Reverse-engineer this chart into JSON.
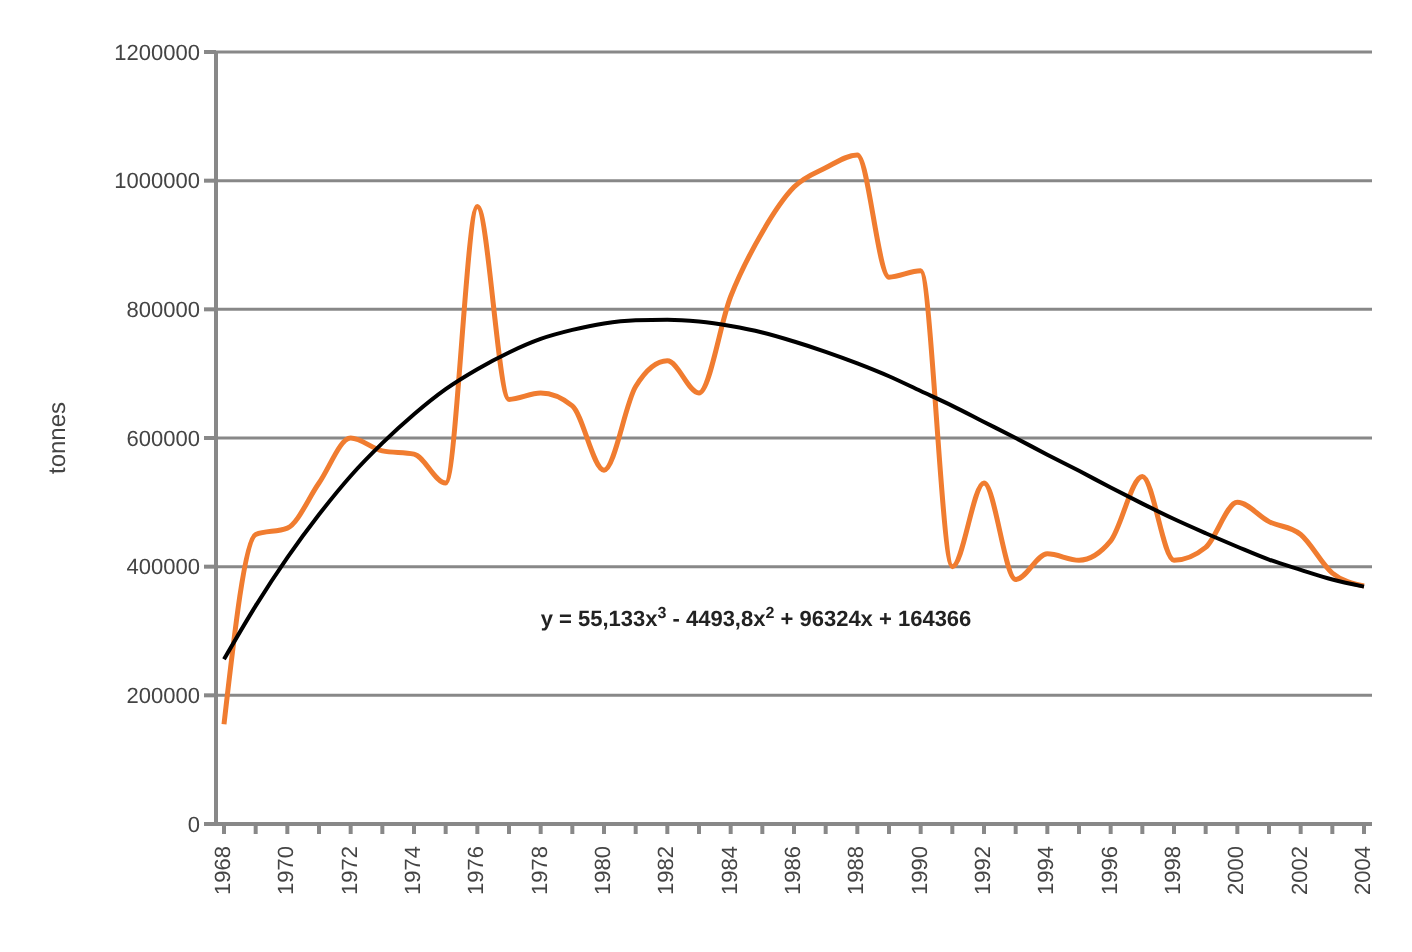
{
  "chart_data": {
    "type": "line",
    "ylabel": "tonnes",
    "categories": [
      "1968",
      null,
      "1970",
      null,
      "1972",
      null,
      "1974",
      null,
      "1976",
      null,
      "1978",
      null,
      "1980",
      null,
      "1982",
      null,
      "1984",
      null,
      "1986",
      null,
      "1988",
      null,
      "1990",
      null,
      "1992",
      null,
      "1994",
      null,
      "1996",
      null,
      "1998",
      null,
      "2000",
      null,
      "2002",
      null,
      "2004"
    ],
    "series": [
      {
        "color": "#f07c30",
        "values": [
          155000,
          450000,
          460000,
          530000,
          600000,
          580000,
          575000,
          530000,
          960000,
          660000,
          670000,
          650000,
          550000,
          680000,
          720000,
          670000,
          820000,
          920000,
          990000,
          1020000,
          1040000,
          850000,
          860000,
          400000,
          530000,
          380000,
          420000,
          410000,
          440000,
          540000,
          410000,
          430000,
          500000,
          470000,
          450000,
          390000,
          370000
        ]
      },
      {
        "type": "line",
        "color": "#000000",
        "values": [
          256000,
          339000,
          414000,
          481000,
          541000,
          592000,
          637000,
          676000,
          707000,
          733000,
          754000,
          768000,
          778000,
          783000,
          784000,
          781000,
          774000,
          764000,
          750000,
          734000,
          716000,
          696000,
          673000,
          650000,
          625000,
          600000,
          574000,
          549000,
          523000,
          498000,
          474000,
          452000,
          431000,
          411000,
          395000,
          380000,
          369000
        ]
      }
    ],
    "ylim": [
      0,
      1200000
    ],
    "yticks": [
      0,
      200000,
      400000,
      600000,
      800000,
      1000000,
      1200000
    ],
    "grid": "y",
    "marker": "none",
    "line_style": "solid",
    "annotations": [
      "y = 55,133x$^{3}$ - 4493,8x$^{2}$ + 96324x + 164366"
    ]
  }
}
